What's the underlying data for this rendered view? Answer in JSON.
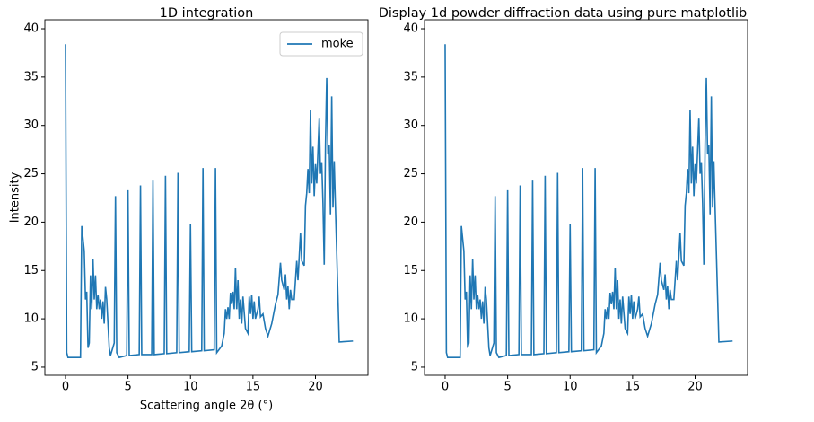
{
  "chart_data": [
    {
      "type": "line",
      "title": "1D integration",
      "xlabel": "Scattering angle 2θ (°)",
      "ylabel": "Intensity",
      "legend": "upper right",
      "x": [
        0.0,
        0.1,
        0.2,
        1.2,
        1.3,
        1.5,
        1.6,
        1.7,
        1.8,
        1.9,
        2.0,
        2.1,
        2.2,
        2.3,
        2.4,
        2.5,
        2.6,
        2.7,
        2.8,
        2.9,
        3.0,
        3.1,
        3.2,
        3.3,
        3.5,
        3.6,
        3.9,
        4.0,
        4.1,
        4.3,
        4.9,
        5.0,
        5.1,
        5.9,
        6.0,
        6.1,
        6.9,
        7.0,
        7.1,
        7.9,
        8.0,
        8.1,
        8.9,
        9.0,
        9.1,
        9.9,
        10.0,
        10.1,
        10.9,
        11.0,
        11.1,
        11.9,
        12.0,
        12.1,
        12.5,
        12.7,
        12.8,
        12.9,
        13.0,
        13.1,
        13.2,
        13.3,
        13.4,
        13.5,
        13.6,
        13.7,
        13.8,
        13.9,
        14.0,
        14.1,
        14.2,
        14.4,
        14.6,
        14.7,
        14.8,
        14.9,
        15.0,
        15.1,
        15.2,
        15.4,
        15.5,
        15.6,
        15.8,
        16.0,
        16.2,
        16.5,
        16.8,
        17.0,
        17.2,
        17.3,
        17.5,
        17.6,
        17.7,
        17.8,
        17.9,
        18.0,
        18.1,
        18.3,
        18.5,
        18.6,
        18.8,
        18.9,
        19.1,
        19.2,
        19.3,
        19.4,
        19.5,
        19.6,
        19.7,
        19.8,
        19.9,
        20.0,
        20.1,
        20.3,
        20.4,
        20.5,
        20.6,
        20.7,
        20.8,
        20.9,
        21.0,
        21.1,
        21.2,
        21.3,
        21.4,
        21.5,
        21.6,
        21.9,
        23.0
      ],
      "series": [
        {
          "name": "moke",
          "color": "#1f77b4",
          "values": [
            38.4,
            6.5,
            6.0,
            6.0,
            19.6,
            17,
            12,
            12.8,
            7,
            7.5,
            14.5,
            11,
            16.2,
            12,
            14.5,
            11,
            12.5,
            11,
            12,
            10,
            11.8,
            9.5,
            13.3,
            12,
            7,
            6.2,
            7.5,
            22.7,
            6.5,
            6.0,
            6.2,
            23.3,
            6.2,
            6.3,
            23.8,
            6.3,
            6.3,
            24.3,
            6.3,
            6.4,
            24.8,
            6.4,
            6.5,
            25.1,
            6.5,
            6.6,
            19.8,
            6.6,
            6.7,
            25.6,
            6.7,
            6.8,
            25.6,
            6.5,
            7.2,
            8.5,
            11,
            10,
            11.2,
            10,
            12.7,
            11.5,
            12.8,
            11,
            15.3,
            11,
            14,
            10,
            12,
            9.5,
            12.3,
            9,
            8.5,
            12.3,
            10.5,
            12.5,
            10,
            11.8,
            10,
            11,
            12.3,
            10.2,
            10.5,
            9,
            8.2,
            9.5,
            11.5,
            12.5,
            15.8,
            14,
            13,
            14.6,
            12,
            13.4,
            11,
            13,
            12,
            12,
            16,
            14,
            18.9,
            16,
            15.5,
            21.7,
            23,
            25.5,
            23,
            31.6,
            24,
            27.8,
            22.7,
            26,
            24,
            30.8,
            25,
            26.2,
            22,
            15.6,
            28,
            34.9,
            27,
            28,
            20.8,
            33,
            21.5,
            26.3,
            21.5,
            7.6,
            7.7
          ]
        }
      ],
      "xlim": [
        -1.65,
        24.2
      ],
      "ylim": [
        4.16,
        40.93
      ],
      "xticks": [
        0,
        5,
        10,
        15,
        20
      ],
      "yticks": [
        5,
        10,
        15,
        20,
        25,
        30,
        35,
        40
      ]
    },
    {
      "type": "line",
      "title": "Display 1d powder diffraction data using pure matplotlib",
      "x": [
        0.0,
        0.1,
        0.2,
        1.2,
        1.3,
        1.5,
        1.6,
        1.7,
        1.8,
        1.9,
        2.0,
        2.1,
        2.2,
        2.3,
        2.4,
        2.5,
        2.6,
        2.7,
        2.8,
        2.9,
        3.0,
        3.1,
        3.2,
        3.3,
        3.5,
        3.6,
        3.9,
        4.0,
        4.1,
        4.3,
        4.9,
        5.0,
        5.1,
        5.9,
        6.0,
        6.1,
        6.9,
        7.0,
        7.1,
        7.9,
        8.0,
        8.1,
        8.9,
        9.0,
        9.1,
        9.9,
        10.0,
        10.1,
        10.9,
        11.0,
        11.1,
        11.9,
        12.0,
        12.1,
        12.5,
        12.7,
        12.8,
        12.9,
        13.0,
        13.1,
        13.2,
        13.3,
        13.4,
        13.5,
        13.6,
        13.7,
        13.8,
        13.9,
        14.0,
        14.1,
        14.2,
        14.4,
        14.6,
        14.7,
        14.8,
        14.9,
        15.0,
        15.1,
        15.2,
        15.4,
        15.5,
        15.6,
        15.8,
        16.0,
        16.2,
        16.5,
        16.8,
        17.0,
        17.2,
        17.3,
        17.5,
        17.6,
        17.7,
        17.8,
        17.9,
        18.0,
        18.1,
        18.3,
        18.5,
        18.6,
        18.8,
        18.9,
        19.1,
        19.2,
        19.3,
        19.4,
        19.5,
        19.6,
        19.7,
        19.8,
        19.9,
        20.0,
        20.1,
        20.3,
        20.4,
        20.5,
        20.6,
        20.7,
        20.8,
        20.9,
        21.0,
        21.1,
        21.2,
        21.3,
        21.4,
        21.5,
        21.6,
        21.9,
        23.0
      ],
      "series": [
        {
          "color": "#1f77b4",
          "values": [
            38.4,
            6.5,
            6.0,
            6.0,
            19.6,
            17,
            12,
            12.8,
            7,
            7.5,
            14.5,
            11,
            16.2,
            12,
            14.5,
            11,
            12.5,
            11,
            12,
            10,
            11.8,
            9.5,
            13.3,
            12,
            7,
            6.2,
            7.5,
            22.7,
            6.5,
            6.0,
            6.2,
            23.3,
            6.2,
            6.3,
            23.8,
            6.3,
            6.3,
            24.3,
            6.3,
            6.4,
            24.8,
            6.4,
            6.5,
            25.1,
            6.5,
            6.6,
            19.8,
            6.6,
            6.7,
            25.6,
            6.7,
            6.8,
            25.6,
            6.5,
            7.2,
            8.5,
            11,
            10,
            11.2,
            10,
            12.7,
            11.5,
            12.8,
            11,
            15.3,
            11,
            14,
            10,
            12,
            9.5,
            12.3,
            9,
            8.5,
            12.3,
            10.5,
            12.5,
            10,
            11.8,
            10,
            11,
            12.3,
            10.2,
            10.5,
            9,
            8.2,
            9.5,
            11.5,
            12.5,
            15.8,
            14,
            13,
            14.6,
            12,
            13.4,
            11,
            13,
            12,
            12,
            16,
            14,
            18.9,
            16,
            15.5,
            21.7,
            23,
            25.5,
            23,
            31.6,
            24,
            27.8,
            22.7,
            26,
            24,
            30.8,
            25,
            26.2,
            22,
            15.6,
            28,
            34.9,
            27,
            28,
            20.8,
            33,
            21.5,
            26.3,
            21.5,
            7.6,
            7.7
          ]
        }
      ],
      "xlim": [
        -1.65,
        24.2
      ],
      "ylim": [
        4.16,
        40.93
      ],
      "xticks": [
        0,
        5,
        10,
        15,
        20
      ],
      "yticks": [
        5,
        10,
        15,
        20,
        25,
        30,
        35,
        40
      ]
    }
  ]
}
